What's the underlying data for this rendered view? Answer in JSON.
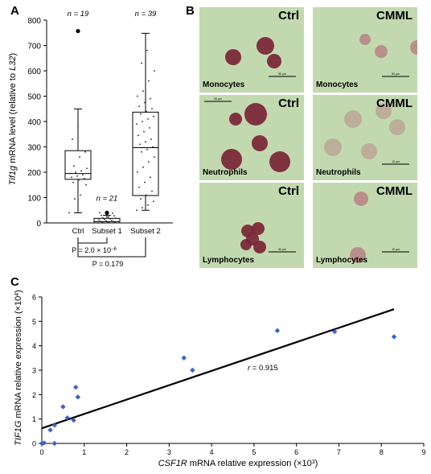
{
  "panel_letters": {
    "a": "A",
    "b": "B",
    "c": "C"
  },
  "chart_data": [
    {
      "type": "box",
      "ylabel_italic": "Tif1g",
      "ylabel_rest": " mRNA level (relative to ",
      "ylabel_ref": "L32",
      "ylabel_close": ")",
      "ylim": [
        0,
        800
      ],
      "yticks": [
        "0",
        "100",
        "200",
        "300",
        "400",
        "500",
        "600",
        "700",
        "800"
      ],
      "categories": [
        "Ctrl",
        "Subset 1",
        "Subset 2"
      ],
      "n_labels": [
        "n = 19",
        "n = 21",
        "n = 39"
      ],
      "boxes": [
        {
          "min": 40,
          "q1": 172,
          "median": 195,
          "q3": 285,
          "max": 450,
          "outliers": [
            757
          ],
          "points": [
            40,
            95,
            110,
            150,
            160,
            170,
            175,
            180,
            185,
            190,
            195,
            200,
            205,
            215,
            225,
            260,
            280,
            330,
            380
          ]
        },
        {
          "min": 0,
          "q1": 0,
          "median": 5,
          "q3": 18,
          "max": 30,
          "outliers": [
            40
          ],
          "points": [
            0,
            0,
            1,
            2,
            3,
            4,
            5,
            6,
            8,
            10,
            12,
            14,
            16,
            18,
            20,
            24,
            28,
            30,
            35,
            38,
            40
          ]
        },
        {
          "min": 50,
          "q1": 108,
          "median": 297,
          "q3": 437,
          "max": 748,
          "outliers": [],
          "points": [
            50,
            60,
            70,
            85,
            95,
            110,
            125,
            140,
            160,
            180,
            200,
            220,
            240,
            260,
            280,
            290,
            300,
            310,
            320,
            330,
            345,
            360,
            375,
            390,
            400,
            410,
            420,
            430,
            440,
            450,
            460,
            475,
            490,
            500,
            520,
            560,
            600,
            630,
            680
          ]
        }
      ],
      "p_labels": [
        "P = 2.0 × 10",
        "−6",
        "P = 0.179"
      ]
    },
    {
      "type": "scatter",
      "xlabel_italic": "CSF1R",
      "xlabel_rest": " mRNA relative expression (×10",
      "xlabel_exp": "3",
      "xlabel_close": ")",
      "ylabel_italic": "TIF1G",
      "ylabel_rest": " mRNA relative expression (×10",
      "ylabel_exp": "4",
      "ylabel_close": ")",
      "xlim": [
        0,
        9
      ],
      "ylim": [
        0,
        6
      ],
      "xticks": [
        "0",
        "1",
        "2",
        "3",
        "4",
        "5",
        "6",
        "7",
        "8",
        "9"
      ],
      "yticks": [
        "0",
        "1",
        "2",
        "3",
        "4",
        "5",
        "6"
      ],
      "points": [
        {
          "x": 0.0,
          "y": 0.0
        },
        {
          "x": 0.05,
          "y": 0.02
        },
        {
          "x": 0.3,
          "y": 0.0
        },
        {
          "x": 0.2,
          "y": 0.55
        },
        {
          "x": 0.3,
          "y": 0.75
        },
        {
          "x": 0.5,
          "y": 1.5
        },
        {
          "x": 0.6,
          "y": 1.05
        },
        {
          "x": 0.75,
          "y": 0.95
        },
        {
          "x": 0.8,
          "y": 2.3
        },
        {
          "x": 0.85,
          "y": 1.9
        },
        {
          "x": 3.35,
          "y": 3.5
        },
        {
          "x": 3.55,
          "y": 3.0
        },
        {
          "x": 5.55,
          "y": 4.62
        },
        {
          "x": 6.9,
          "y": 4.58
        },
        {
          "x": 8.3,
          "y": 4.37
        }
      ],
      "fit_line": {
        "x0": 0.0,
        "y0": 0.62,
        "x1": 8.3,
        "y1": 5.5
      },
      "r_italic": "r",
      "r_value": " = 0.915",
      "point_color": "#3b62c9"
    }
  ],
  "micrographs": {
    "ctrl_label": "Ctrl",
    "cmml_label": "CMML",
    "rows": [
      "Monocytes",
      "Neutrophils",
      "Lymphocytes"
    ],
    "scale_bars": [
      "50 µm",
      "50 µm",
      "25 µm",
      "10 µm",
      "50 µm",
      "10 µm"
    ],
    "background": "#c2d9b0",
    "ctrl_cell_color": "#7a2535",
    "cmml_cell_color": "#b88a86"
  }
}
